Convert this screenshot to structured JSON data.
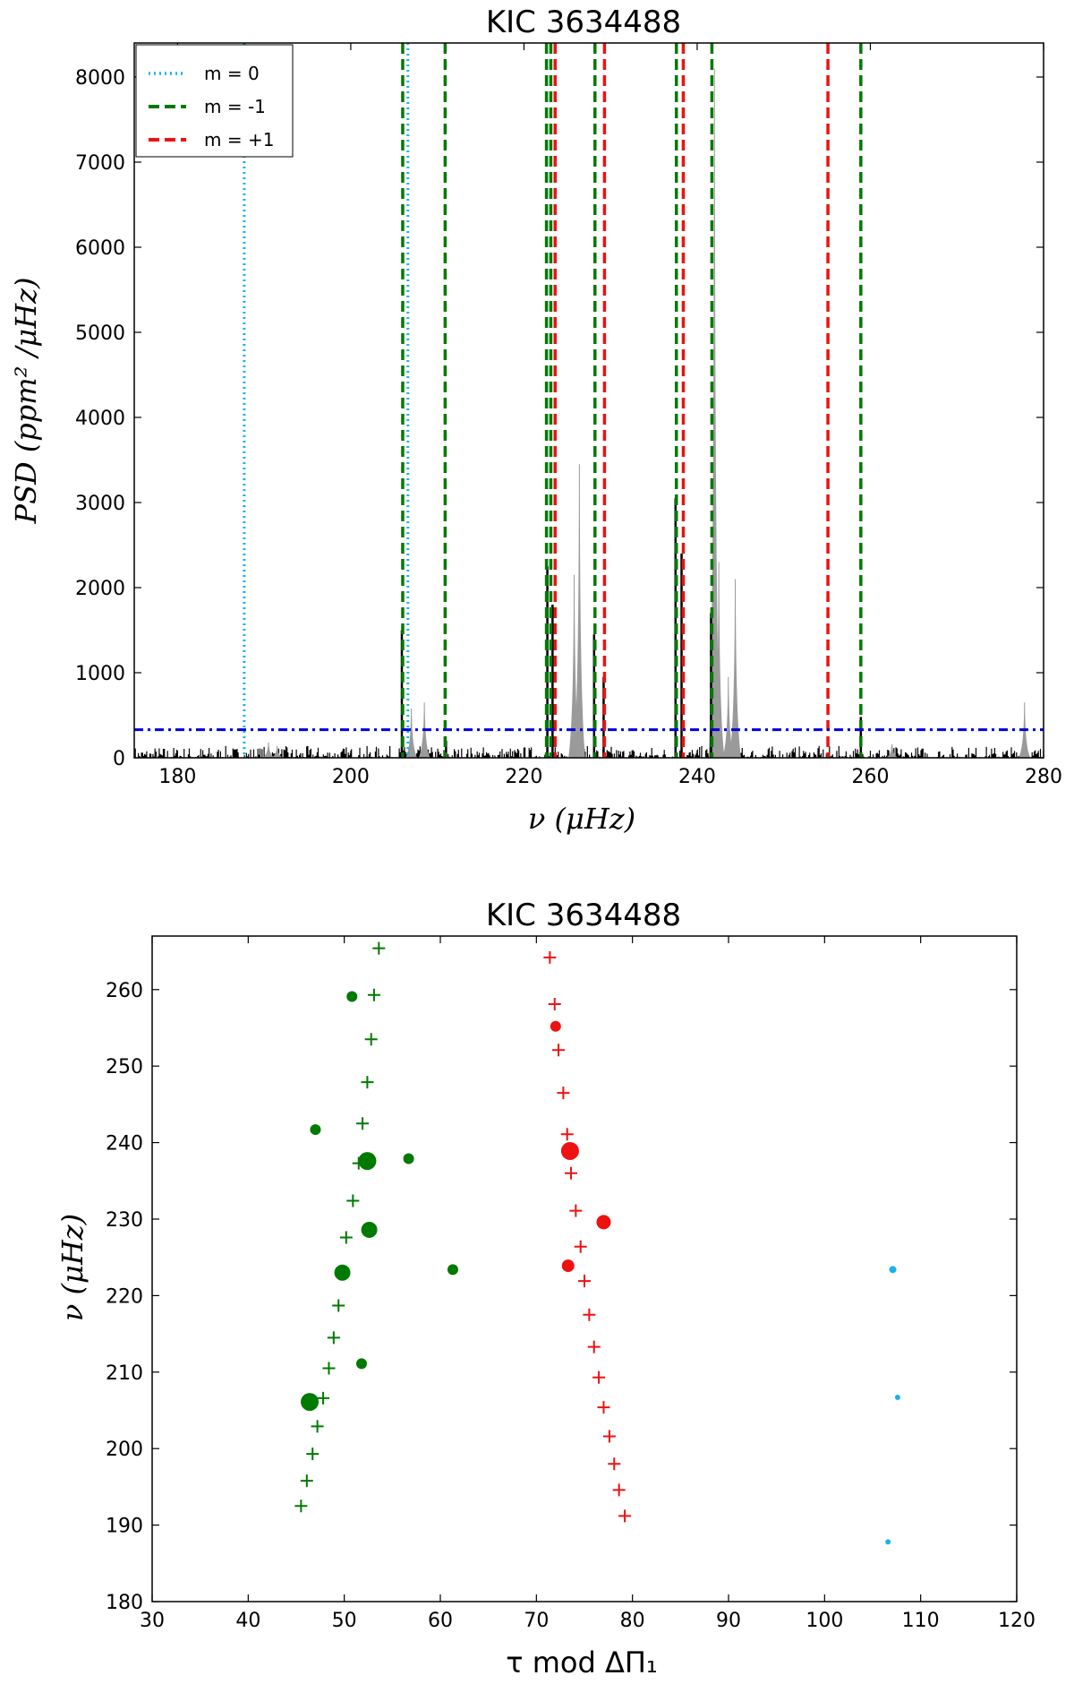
{
  "chart_data": [
    {
      "type": "line",
      "title": "KIC 3634488",
      "xlabel": "ν (μHz)",
      "ylabel": "PSD (ppm² /μHz)",
      "xlim": [
        175,
        280
      ],
      "ylim": [
        0,
        8400
      ],
      "xticks": [
        180,
        200,
        220,
        240,
        260,
        280
      ],
      "yticks": [
        0,
        1000,
        2000,
        3000,
        4000,
        5000,
        6000,
        7000,
        8000
      ],
      "legend_position": "top-left",
      "legend": [
        {
          "label": "m = 0",
          "color": "#1ab2e8",
          "style": "dotted"
        },
        {
          "label": "m = -1",
          "color": "#007a00",
          "style": "dashed"
        },
        {
          "label": "m = +1",
          "color": "#ee1111",
          "style": "dashed"
        }
      ],
      "threshold": {
        "value": 330,
        "color": "#0000dd",
        "style": "dashdot"
      },
      "vlines": {
        "m0": [
          187.7,
          206.6
        ],
        "m_minus1": [
          206.0,
          210.9,
          222.6,
          223.1,
          228.2,
          237.6,
          241.7,
          258.9
        ],
        "m_plus1": [
          223.6,
          229.3,
          238.4,
          255.1
        ]
      },
      "peaks_black": [
        {
          "x": 205.9,
          "y": 1500
        },
        {
          "x": 222.7,
          "y": 2250
        },
        {
          "x": 223.3,
          "y": 1800
        },
        {
          "x": 228.1,
          "y": 1450
        },
        {
          "x": 229.2,
          "y": 950
        },
        {
          "x": 237.5,
          "y": 3050
        },
        {
          "x": 238.2,
          "y": 2400
        },
        {
          "x": 241.6,
          "y": 1700
        },
        {
          "x": 258.9,
          "y": 480
        },
        {
          "x": 211.0,
          "y": 200
        }
      ],
      "peaks_gray": [
        {
          "x": 207.0,
          "y": 580
        },
        {
          "x": 208.5,
          "y": 650
        },
        {
          "x": 225.8,
          "y": 2150
        },
        {
          "x": 226.4,
          "y": 3450
        },
        {
          "x": 242.0,
          "y": 8100
        },
        {
          "x": 242.5,
          "y": 2300
        },
        {
          "x": 244.4,
          "y": 2100
        },
        {
          "x": 243.6,
          "y": 950
        },
        {
          "x": 277.8,
          "y": 650
        },
        {
          "x": 190.5,
          "y": 180
        },
        {
          "x": 191.5,
          "y": 140
        },
        {
          "x": 262.5,
          "y": 160
        }
      ]
    },
    {
      "type": "scatter",
      "title": "KIC 3634488",
      "xlabel": "τ mod ΔΠ₁",
      "ylabel": "ν (μHz)",
      "xlim": [
        30,
        120
      ],
      "ylim": [
        180,
        267
      ],
      "xticks": [
        30,
        40,
        50,
        60,
        70,
        80,
        90,
        100,
        110,
        120
      ],
      "yticks": [
        180,
        190,
        200,
        210,
        220,
        230,
        240,
        250,
        260
      ],
      "series": [
        {
          "color": "#007a00",
          "marker": "plus",
          "points": [
            [
              53.6,
              265.4
            ],
            [
              53.1,
              259.3
            ],
            [
              52.8,
              253.5
            ],
            [
              52.4,
              247.9
            ],
            [
              51.9,
              242.5
            ],
            [
              51.5,
              237.3
            ],
            [
              50.9,
              232.4
            ],
            [
              50.2,
              227.6
            ],
            [
              49.8,
              223.0
            ],
            [
              49.4,
              218.7
            ],
            [
              48.9,
              214.5
            ],
            [
              48.4,
              210.5
            ],
            [
              47.8,
              206.6
            ],
            [
              47.2,
              202.9
            ],
            [
              46.7,
              199.3
            ],
            [
              46.1,
              195.8
            ],
            [
              45.5,
              192.5
            ]
          ]
        },
        {
          "color": "#ee1111",
          "marker": "plus",
          "points": [
            [
              71.4,
              264.2
            ],
            [
              71.9,
              258.1
            ],
            [
              72.3,
              252.1
            ],
            [
              72.8,
              246.5
            ],
            [
              73.2,
              241.1
            ],
            [
              73.6,
              236.0
            ],
            [
              74.1,
              231.1
            ],
            [
              74.6,
              226.4
            ],
            [
              75.0,
              221.9
            ],
            [
              75.5,
              217.5
            ],
            [
              76.0,
              213.3
            ],
            [
              76.5,
              209.3
            ],
            [
              77.0,
              205.4
            ],
            [
              77.6,
              201.6
            ],
            [
              78.1,
              198.0
            ],
            [
              78.6,
              194.6
            ],
            [
              79.2,
              191.2
            ]
          ]
        },
        {
          "color": "#007a00",
          "marker": "dot",
          "points": [
            [
              50.8,
              259.1,
              6
            ],
            [
              47.0,
              241.7,
              6
            ],
            [
              52.4,
              237.6,
              10
            ],
            [
              56.7,
              237.9,
              6
            ],
            [
              52.6,
              228.6,
              9
            ],
            [
              49.8,
              223.0,
              9
            ],
            [
              61.3,
              223.4,
              6
            ],
            [
              51.8,
              211.1,
              6
            ],
            [
              46.4,
              206.1,
              10
            ]
          ]
        },
        {
          "color": "#ee1111",
          "marker": "dot",
          "points": [
            [
              72.0,
              255.2,
              6
            ],
            [
              73.5,
              238.9,
              10
            ],
            [
              77.0,
              229.6,
              8
            ],
            [
              73.3,
              223.9,
              7
            ]
          ]
        },
        {
          "color": "#1ab2e8",
          "marker": "dot",
          "points": [
            [
              107.1,
              223.4,
              4
            ],
            [
              107.6,
              206.7,
              3
            ],
            [
              106.6,
              187.8,
              3
            ]
          ]
        }
      ]
    }
  ]
}
